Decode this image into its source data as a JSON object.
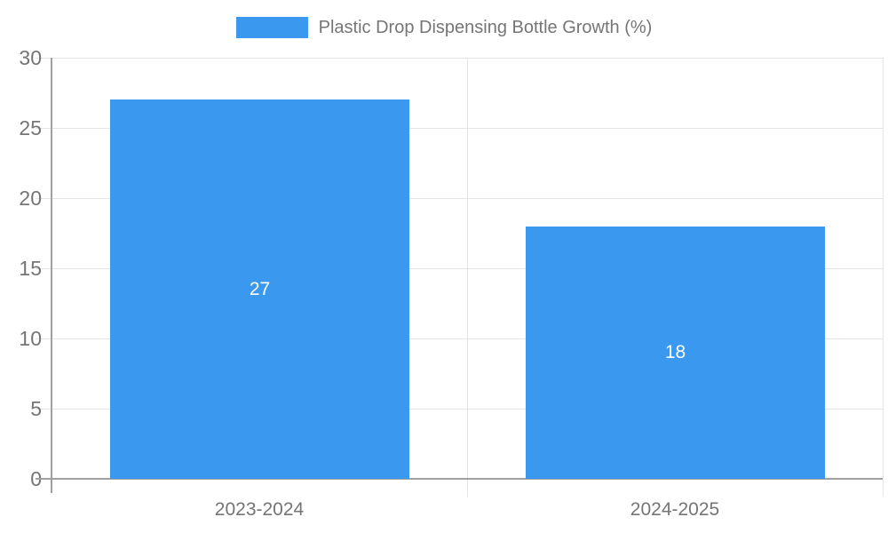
{
  "legend": {
    "series_label": "Plastic Drop Dispensing Bottle Growth (%)"
  },
  "chart_data": {
    "type": "bar",
    "title": "Plastic Drop Dispensing Bottle Growth (%)",
    "categories": [
      "2023-2024",
      "2024-2025"
    ],
    "values": [
      27,
      18
    ],
    "bar_labels": [
      "27",
      "18"
    ],
    "xlabel": "",
    "ylabel": "",
    "ylim": [
      0,
      30
    ],
    "ytick_step": 5,
    "ytick_labels": [
      "0",
      "5",
      "10",
      "15",
      "20",
      "25",
      "30"
    ],
    "grid": true,
    "legend_position": "top-center",
    "bar_width_fraction": 0.72,
    "colors": {
      "bar": "#3a99ee",
      "bar_label_text": "#ffffff",
      "axis_line": "#a0a0a0",
      "gridline": "#e5e5e5",
      "tick_label_text": "#757575",
      "legend_text": "#757575",
      "background": "#ffffff"
    }
  }
}
